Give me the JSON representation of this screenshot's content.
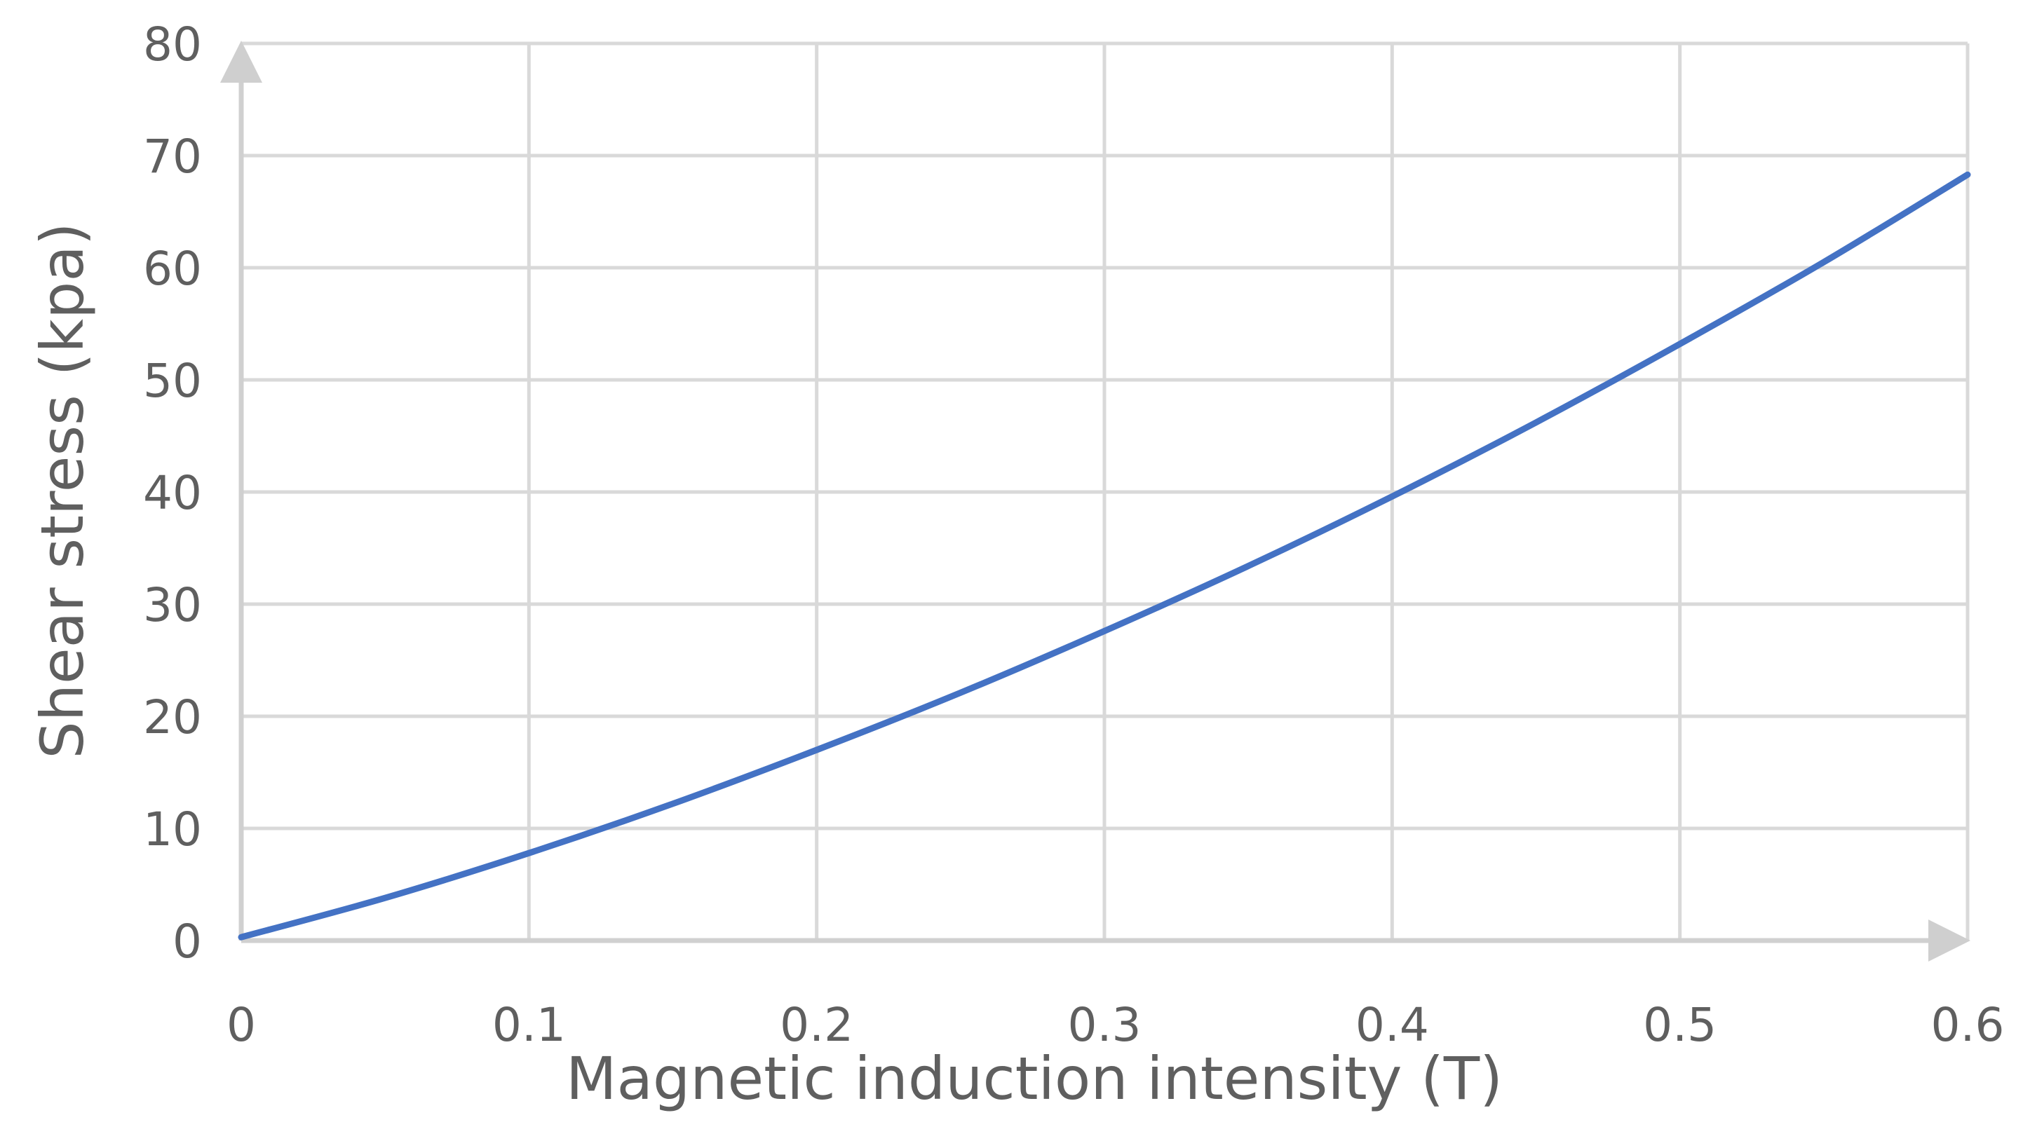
{
  "chart_data": {
    "type": "line",
    "title": "",
    "xlabel": "Magnetic induction intensity (T)",
    "ylabel": "Shear stress (kpa)",
    "xlim": [
      0,
      0.6
    ],
    "ylim": [
      0,
      80
    ],
    "x_ticks": [
      0,
      0.1,
      0.2,
      0.3,
      0.4,
      0.5,
      0.6
    ],
    "x_tick_labels": [
      "0",
      "0.1",
      "0.2",
      "0.3",
      "0.4",
      "0.5",
      "0.6"
    ],
    "y_ticks": [
      0,
      10,
      20,
      30,
      40,
      50,
      60,
      70,
      80
    ],
    "y_tick_labels": [
      "0",
      "10",
      "20",
      "30",
      "40",
      "50",
      "60",
      "70",
      "80"
    ],
    "grid": true,
    "legend": "none",
    "series": [
      {
        "name": "Shear stress",
        "color": "#4472c4",
        "x": [
          0,
          0.05,
          0.1,
          0.15,
          0.2,
          0.25,
          0.3,
          0.35,
          0.4,
          0.45,
          0.5,
          0.55,
          0.6
        ],
        "y": [
          0.3,
          3.8,
          7.8,
          12.2,
          17.0,
          22.1,
          27.6,
          33.4,
          39.6,
          46.2,
          53.2,
          60.5,
          68.3
        ]
      }
    ]
  },
  "colors": {
    "grid": "#d9d9d9",
    "axis": "#cfcfcf",
    "text": "#5f5f5f"
  }
}
